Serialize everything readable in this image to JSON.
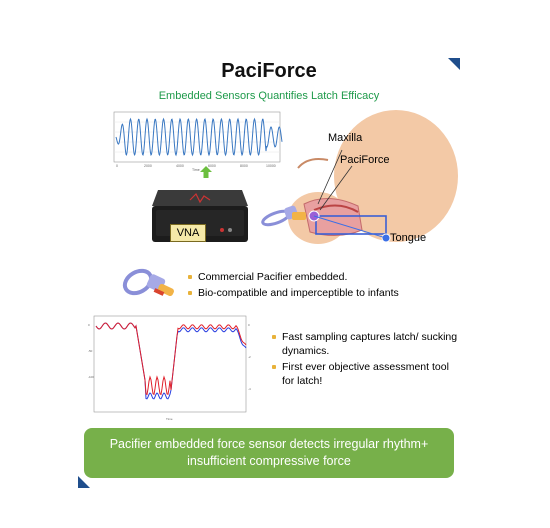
{
  "slide": {
    "title": "PaciForce",
    "subtitle": "Embedded Sensors Quantifies Latch Efficacy",
    "vna_label": "VNA",
    "anatomy_labels": {
      "maxilla": "Maxilla",
      "paciforce": "PaciForce",
      "tongue": "Tongue"
    },
    "bullets_top": [
      "Commercial Pacifier embedded.",
      "Bio-compatible and imperceptible to infants"
    ],
    "bullets_bottom": [
      "Fast sampling captures latch/ sucking dynamics.",
      "First ever objective assessment tool for latch!"
    ],
    "banner": "Pacifier embedded force sensor detects irregular rhythm+ insufficient compressive force"
  },
  "colors": {
    "accent_green": "#1e9a4a",
    "banner_green": "#77b04a",
    "corner_blue": "#1f4e8c",
    "bullet_gold": "#e8b23a"
  }
}
